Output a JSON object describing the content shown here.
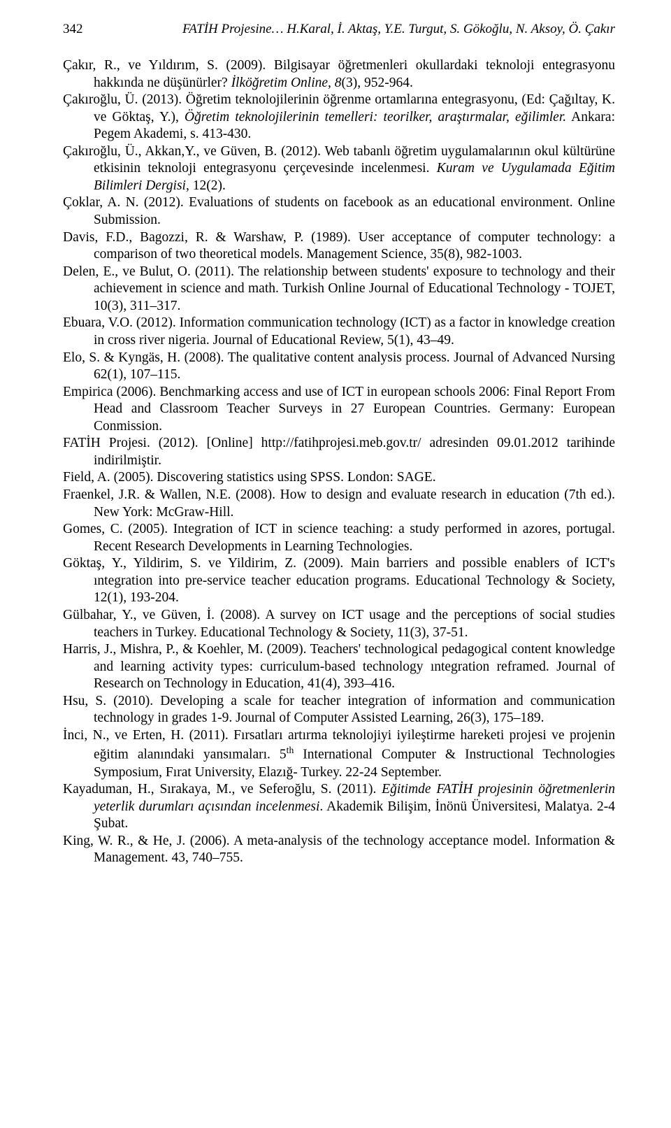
{
  "header": {
    "page_number": "342",
    "running_title": "FATİH Projesine… H.Karal, İ. Aktaş,  Y.E. Turgut, S. Gökoğlu, N. Aksoy, Ö. Çakır"
  },
  "references": [
    {
      "html": "Çakır, R., ve Yıldırım, S. (2009). Bilgisayar öğretmenleri okullardaki teknoloji entegrasyonu hakkında ne düşünürler? <span class=\"italic\">İlköğretim Online, 8</span>(3), 952-964."
    },
    {
      "html": "Çakıroğlu, Ü. (2013). Öğretim teknolojilerinin öğrenme ortamlarına entegrasyonu, (Ed: Çağıltay, K. ve Göktaş, Y.), <span class=\"italic\">Öğretim teknolojilerinin temelleri: teorilker, araştırmalar, eğilimler.</span> Ankara: Pegem Akademi, s. 413-430."
    },
    {
      "html": "Çakıroğlu, Ü., Akkan,Y., ve Güven, B. (2012). Web tabanlı öğretim uygulamalarının okul kültürüne etkisinin teknoloji entegrasyonu çerçevesinde incelenmesi. <span class=\"italic\">Kuram ve Uygulamada Eğitim Bilimleri Dergisi</span>, 12(2)."
    },
    {
      "html": "Çoklar, A. N. (2012). Evaluations of students on facebook as an educational environment. Online Submission."
    },
    {
      "html": "Davis, F.D., Bagozzi, R. &amp; Warshaw, P. (1989). User acceptance of computer technology: a comparison of two  theoretical models. Management Science, 35(8), 982-1003."
    },
    {
      "html": "Delen, E., ve Bulut, O. (2011). The relationship between students' exposure to technology and their achievement in science and math. Turkish Online Journal of Educational Technology - TOJET, 10(3), 311–317."
    },
    {
      "html": "Ebuara, V.O. (2012). Information communication technology (ICT) as a factor in knowledge creation in cross river nigeria. Journal of Educational Review, 5(1), 43–49."
    },
    {
      "html": "Elo, S. &amp; Kyngäs, H. (2008). The qualitative content analysis process. Journal of Advanced Nursing 62(1), 107–115."
    },
    {
      "html": "Empirica (2006). Benchmarking access and use of ICT in european schools 2006: Final Report From Head and Classroom Teacher Surveys in 27 European Countries. Germany: European Conmission."
    },
    {
      "html": "FATİH Projesi. (2012). [Online] http://fatihprojesi.meb.gov.tr/ adresinden 09.01.2012 tarihinde indirilmiştir."
    },
    {
      "html": "Field, A. (2005). Discovering statistics using SPSS. London: SAGE."
    },
    {
      "html": "Fraenkel, J.R. &amp; Wallen, N.E. (2008). How to design and evaluate research in education (7th ed.). New York: McGraw-Hill."
    },
    {
      "html": "Gomes, C. (2005). Integration of ICT in science teaching: a study performed in azores, portugal. Recent Research Developments in Learning Technologies."
    },
    {
      "html": "Göktaş, Y., Yildirim, S. ve Yildirim, Z. (2009). Main barriers and possible enablers of ICT's ıntegration into pre-service teacher education programs. Educational Technology &amp; Society, 12(1), 193-204."
    },
    {
      "html": "Gülbahar, Y., ve Güven, İ. (2008). A survey on ICT usage and the perceptions of social studies teachers in Turkey. Educational Technology &amp; Society, 11(3), 37-51."
    },
    {
      "html": "Harris, J., Mishra, P., &amp; Koehler, M. (2009). Teachers' technological pedagogical content knowledge and learning activity types: curriculum-based technology ıntegration reframed. Journal of Research on Technology in Education, 41(4), 393–416."
    },
    {
      "html": "Hsu, S. (2010). Developing a scale for teacher integration of information and communication technology in grades 1-9. Journal of Computer Assisted Learning, 26(3), 175–189."
    },
    {
      "html": "İnci, N., ve Erten, H. (2011). Fırsatları artırma teknolojiyi iyileştirme hareketi projesi ve projenin eğitim alanındaki yansımaları. 5<sup>th</sup> International Computer &amp; Instructional Technologies Symposium, Fırat University, Elazığ- Turkey. 22-24 September."
    },
    {
      "html": "Kayaduman, H., Sırakaya, M., ve Seferoğlu, S. (2011). <span class=\"italic\">Eğitimde FATİH projesinin öğretmenlerin yeterlik durumları açısından incelenmesi</span>. Akademik Bilişim, İnönü Üniversitesi, Malatya. 2-4 Şubat."
    },
    {
      "html": "King, W. R., &amp;  He, J. (2006). A meta-analysis of the technology acceptance model. Information &amp; Management. 43, 740–755."
    }
  ]
}
